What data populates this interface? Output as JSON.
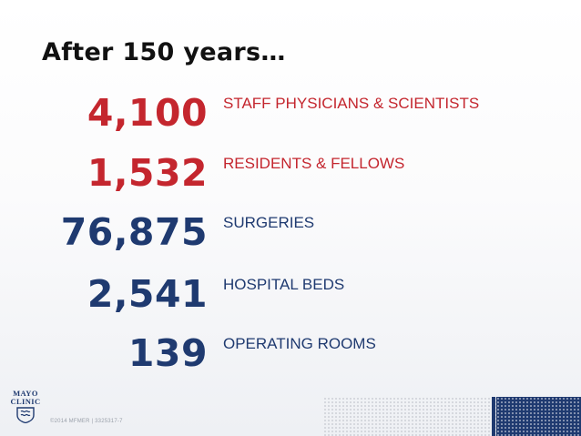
{
  "slide": {
    "title": "After 150 years…",
    "colors": {
      "number": "#c4262e",
      "label": "#c4262e",
      "title": "#111111",
      "brand": "#1f3a70"
    },
    "stats": [
      {
        "number": "4,100",
        "label": "STAFF PHYSICIANS & SCIENTISTS",
        "number_color": "#c4262e"
      },
      {
        "number": "1,532",
        "label": "RESIDENTS & FELLOWS",
        "number_color": "#c4262e"
      },
      {
        "number": "76,875",
        "label": "SURGERIES",
        "number_color": "#1f3a70"
      },
      {
        "number": "2,541",
        "label": "HOSPITAL BEDS",
        "number_color": "#1f3a70"
      },
      {
        "number": "139",
        "label": "OPERATING ROOMS",
        "number_color": "#1f3a70"
      }
    ],
    "logo": {
      "line1": "MAYO",
      "line2": "CLINIC",
      "icon": "mayo-shield-icon"
    },
    "footer": "©2014 MFMER | 3325317-7"
  }
}
